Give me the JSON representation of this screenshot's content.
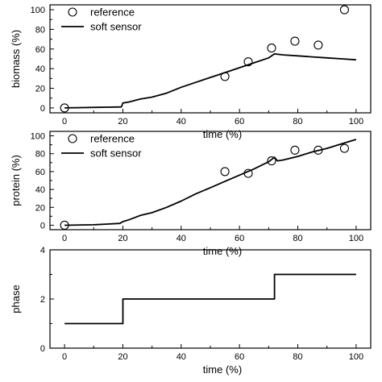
{
  "chart_data": [
    {
      "type": "line",
      "xlabel": "time (%)",
      "ylabel": "biomass (%)",
      "xlim": [
        -5,
        105
      ],
      "ylim": [
        -5,
        105
      ],
      "xticks": [
        0,
        20,
        40,
        60,
        80,
        100
      ],
      "yticks": [
        0,
        20,
        40,
        60,
        80,
        100
      ],
      "legend_position": "top-left",
      "series": [
        {
          "name": "reference",
          "kind": "scatter",
          "marker": "open-circle",
          "x": [
            0,
            55,
            63,
            71,
            79,
            87,
            96
          ],
          "y": [
            0,
            32,
            47,
            61,
            68,
            64,
            100
          ]
        },
        {
          "name": "soft sensor",
          "kind": "line",
          "x": [
            0,
            19.5,
            20,
            22,
            26,
            30,
            35,
            40,
            45,
            50,
            55,
            60,
            65,
            70,
            72,
            75,
            80,
            85,
            90,
            95,
            100
          ],
          "y": [
            0,
            1,
            5,
            6,
            9,
            11,
            15,
            21,
            26,
            31,
            36,
            41,
            46,
            51,
            55,
            54,
            53,
            52,
            51,
            50,
            49
          ]
        }
      ]
    },
    {
      "type": "line",
      "xlabel": "time (%)",
      "ylabel": "protein (%)",
      "xlim": [
        -5,
        105
      ],
      "ylim": [
        -5,
        105
      ],
      "xticks": [
        0,
        20,
        40,
        60,
        80,
        100
      ],
      "yticks": [
        0,
        20,
        40,
        60,
        80,
        100
      ],
      "legend_position": "top-left",
      "series": [
        {
          "name": "reference",
          "kind": "scatter",
          "marker": "open-circle",
          "x": [
            0,
            55,
            63,
            71,
            79,
            87,
            96
          ],
          "y": [
            0,
            60,
            58,
            72,
            84,
            84,
            86
          ]
        },
        {
          "name": "soft sensor",
          "kind": "line",
          "x": [
            0,
            10,
            19,
            20,
            22,
            26,
            30,
            35,
            40,
            45,
            50,
            55,
            60,
            65,
            70,
            72,
            73,
            75,
            80,
            85,
            90,
            95,
            100
          ],
          "y": [
            0,
            0.5,
            2,
            4,
            6,
            11,
            14,
            20,
            27,
            35,
            42,
            49,
            56,
            63,
            71,
            76,
            72,
            73,
            77,
            82,
            86,
            91,
            96
          ]
        }
      ]
    },
    {
      "type": "line",
      "xlabel": "time (%)",
      "ylabel": "phase",
      "xlim": [
        -5,
        105
      ],
      "ylim": [
        0,
        4
      ],
      "xticks": [
        0,
        20,
        40,
        60,
        80,
        100
      ],
      "yticks": [
        0,
        2,
        4
      ],
      "series": [
        {
          "kind": "line",
          "step": true,
          "x": [
            0,
            20,
            20,
            72,
            72,
            100
          ],
          "y": [
            1,
            1,
            2,
            2,
            3,
            3
          ]
        }
      ]
    }
  ]
}
